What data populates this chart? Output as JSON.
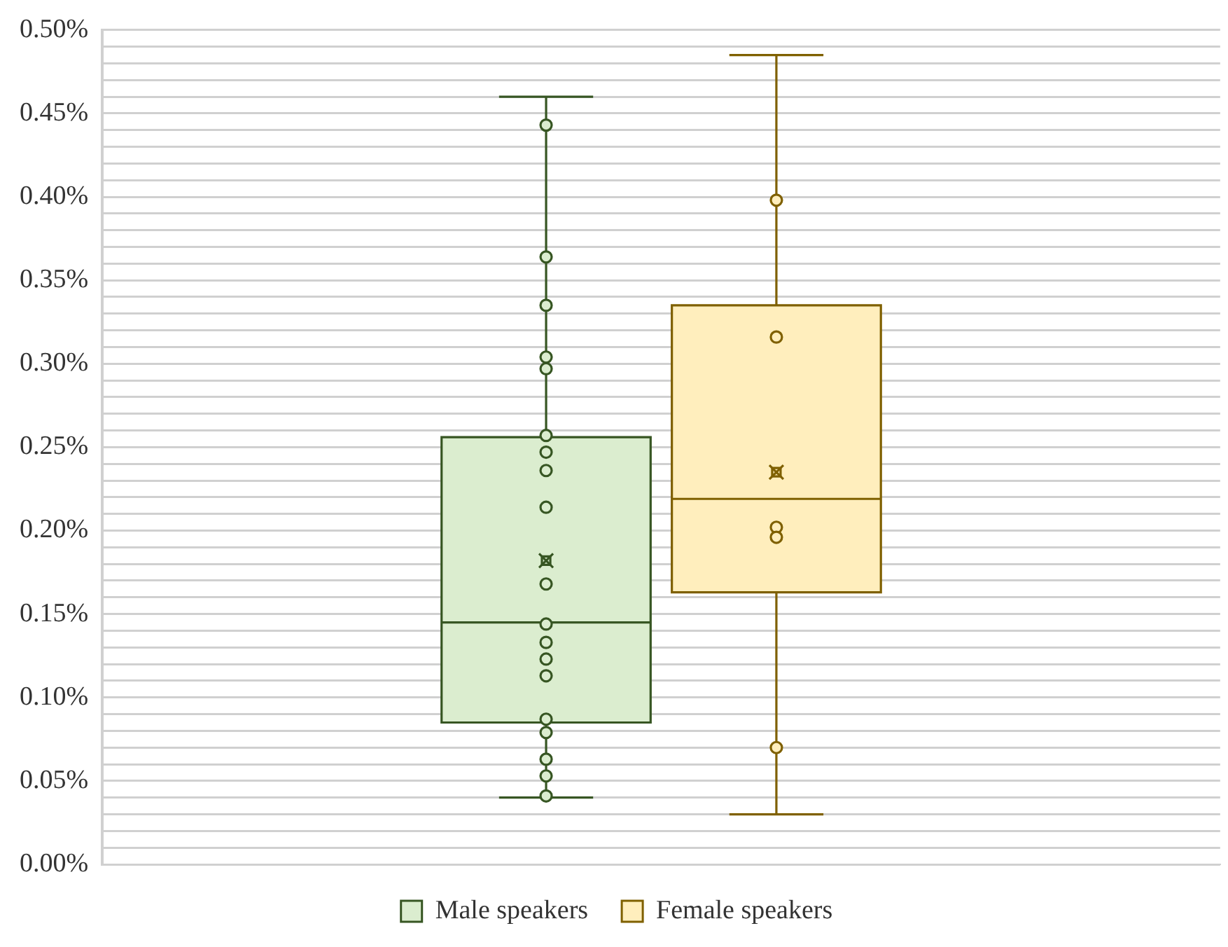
{
  "chart_data": {
    "type": "box",
    "categories": [
      null
    ],
    "series": [
      {
        "name": "Male speakers",
        "color": "#375623",
        "boxes": [
          {
            "low": 0.04,
            "q1": 0.085,
            "median": 0.145,
            "q3": 0.256,
            "high": 0.46,
            "mean": 0.182
          }
        ]
      },
      {
        "name": "Female speakers",
        "color": "#7f6000",
        "boxes": [
          {
            "low": 0.03,
            "q1": 0.163,
            "median": 0.219,
            "q3": 0.335,
            "high": 0.485,
            "mean": 0.235
          }
        ]
      },
      {
        "type": "scatter",
        "color": "#375623",
        "x": [
          null,
          null,
          null,
          null,
          null,
          null,
          null,
          null,
          null,
          null,
          null,
          null,
          null,
          null,
          null,
          null,
          null,
          null,
          null
        ],
        "values": [
          0.443,
          0.364,
          0.335,
          0.304,
          0.297,
          0.257,
          0.247,
          0.236,
          0.214,
          0.168,
          0.144,
          0.133,
          0.123,
          0.113,
          0.087,
          0.079,
          0.063,
          0.053,
          0.041
        ]
      },
      {
        "type": "scatter",
        "color": "#7f6000",
        "x": [
          null,
          null,
          null,
          null,
          null
        ],
        "values": [
          0.398,
          0.316,
          0.202,
          0.196,
          0.07
        ]
      }
    ],
    "ylim": [
      0,
      0.5
    ],
    "yticks": [
      {
        "value": 0,
        "label": "0.00%"
      },
      {
        "value": 0.01,
        "label": null
      },
      {
        "value": 0.02,
        "label": null
      },
      {
        "value": 0.03,
        "label": null
      },
      {
        "value": 0.04,
        "label": null
      },
      {
        "value": 0.05,
        "label": "0.05%"
      },
      {
        "value": 0.06,
        "label": null
      },
      {
        "value": 0.07,
        "label": null
      },
      {
        "value": 0.08,
        "label": null
      },
      {
        "value": 0.09,
        "label": null
      },
      {
        "value": 0.1,
        "label": "0.10%"
      },
      {
        "value": 0.11,
        "label": null
      },
      {
        "value": 0.12,
        "label": null
      },
      {
        "value": 0.13,
        "label": null
      },
      {
        "value": 0.14,
        "label": null
      },
      {
        "value": 0.15,
        "label": "0.15%"
      },
      {
        "value": 0.16,
        "label": null
      },
      {
        "value": 0.17,
        "label": null
      },
      {
        "value": 0.18,
        "label": null
      },
      {
        "value": 0.19,
        "label": null
      },
      {
        "value": 0.2,
        "label": "0.20%"
      },
      {
        "value": 0.21,
        "label": null
      },
      {
        "value": 0.22,
        "label": null
      },
      {
        "value": 0.23,
        "label": null
      },
      {
        "value": 0.24,
        "label": null
      },
      {
        "value": 0.25,
        "label": "0.25%"
      },
      {
        "value": 0.26,
        "label": null
      },
      {
        "value": 0.27,
        "label": null
      },
      {
        "value": 0.28,
        "label": null
      },
      {
        "value": 0.29,
        "label": null
      },
      {
        "value": 0.3,
        "label": "0.30%"
      },
      {
        "value": 0.31,
        "label": null
      },
      {
        "value": 0.32,
        "label": null
      },
      {
        "value": 0.33,
        "label": null
      },
      {
        "value": 0.34,
        "label": null
      },
      {
        "value": 0.35,
        "label": "0.35%"
      },
      {
        "value": 0.36,
        "label": null
      },
      {
        "value": 0.37,
        "label": null
      },
      {
        "value": 0.38,
        "label": null
      },
      {
        "value": 0.39,
        "label": null
      },
      {
        "value": 0.4,
        "label": "0.40%"
      },
      {
        "value": 0.41,
        "label": null
      },
      {
        "value": 0.42,
        "label": null
      },
      {
        "value": 0.43,
        "label": null
      },
      {
        "value": 0.44,
        "label": null
      },
      {
        "value": 0.45,
        "label": "0.45%"
      },
      {
        "value": 0.46,
        "label": null
      },
      {
        "value": 0.47,
        "label": null
      },
      {
        "value": 0.48,
        "label": null
      },
      {
        "value": 0.49,
        "label": null
      },
      {
        "value": 0.5,
        "label": "0.50%"
      }
    ],
    "grid": "y",
    "legend": "bottom",
    "marker": "circle"
  }
}
